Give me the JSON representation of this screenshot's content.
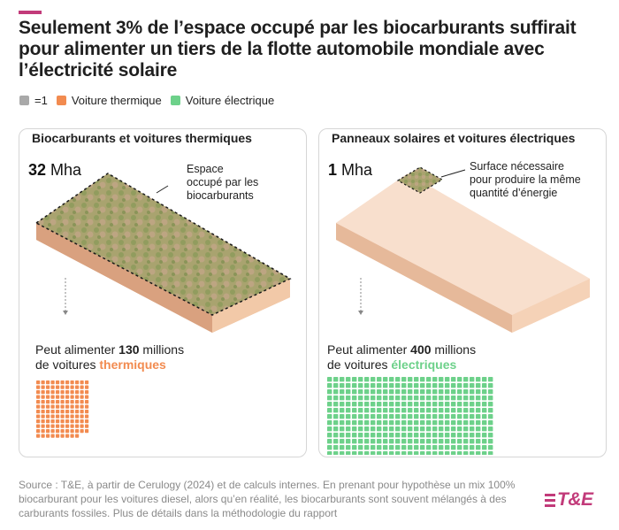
{
  "title": "Seulement 3% de l’espace occupé par les biocarburants suffirait pour alimenter un tiers de la flotte automobile mondiale avec l’électricité solaire",
  "legend": [
    {
      "label": "=1",
      "color": "#a9a9a9"
    },
    {
      "label": "Voiture thermique",
      "color": "#f28b50"
    },
    {
      "label": "Voiture électrique",
      "color": "#6dd18a"
    }
  ],
  "left_panel": {
    "title": "Biocarburants et voitures thermiques",
    "area_value": "32",
    "area_unit": "Mha",
    "annotation": [
      "Espace",
      "occupé par les",
      "biocarburants"
    ],
    "result_prefix": "Peut alimenter ",
    "result_number": "130",
    "result_suffix": " millions",
    "result_line2_prefix": "de voitures ",
    "result_line2_highlight": "thermiques",
    "cars_count": 130,
    "car_color": "#f28b50"
  },
  "right_panel": {
    "title": "Panneaux solaires et voitures électriques",
    "area_value": "1",
    "area_unit": "Mha",
    "annotation": [
      "Surface nécessaire",
      "pour produire la même",
      "quantité d’énergie"
    ],
    "result_prefix": "Peut alimenter ",
    "result_number": "400",
    "result_suffix": " millions",
    "result_line2_prefix": "de voitures ",
    "result_line2_highlight": "électriques",
    "cars_count": 400,
    "car_color": "#6dd18a"
  },
  "source": "Source : T&E, à partir de Cerulogy (2024) et de calculs internes. En prenant pour hypothèse un mix 100% biocarburant pour les voitures diesel, alors qu’en réalité, les biocarburants sont souvent mélangés à des carburants fossiles. Plus de détails dans la méthodologie du rapport",
  "logo": "T&E"
}
